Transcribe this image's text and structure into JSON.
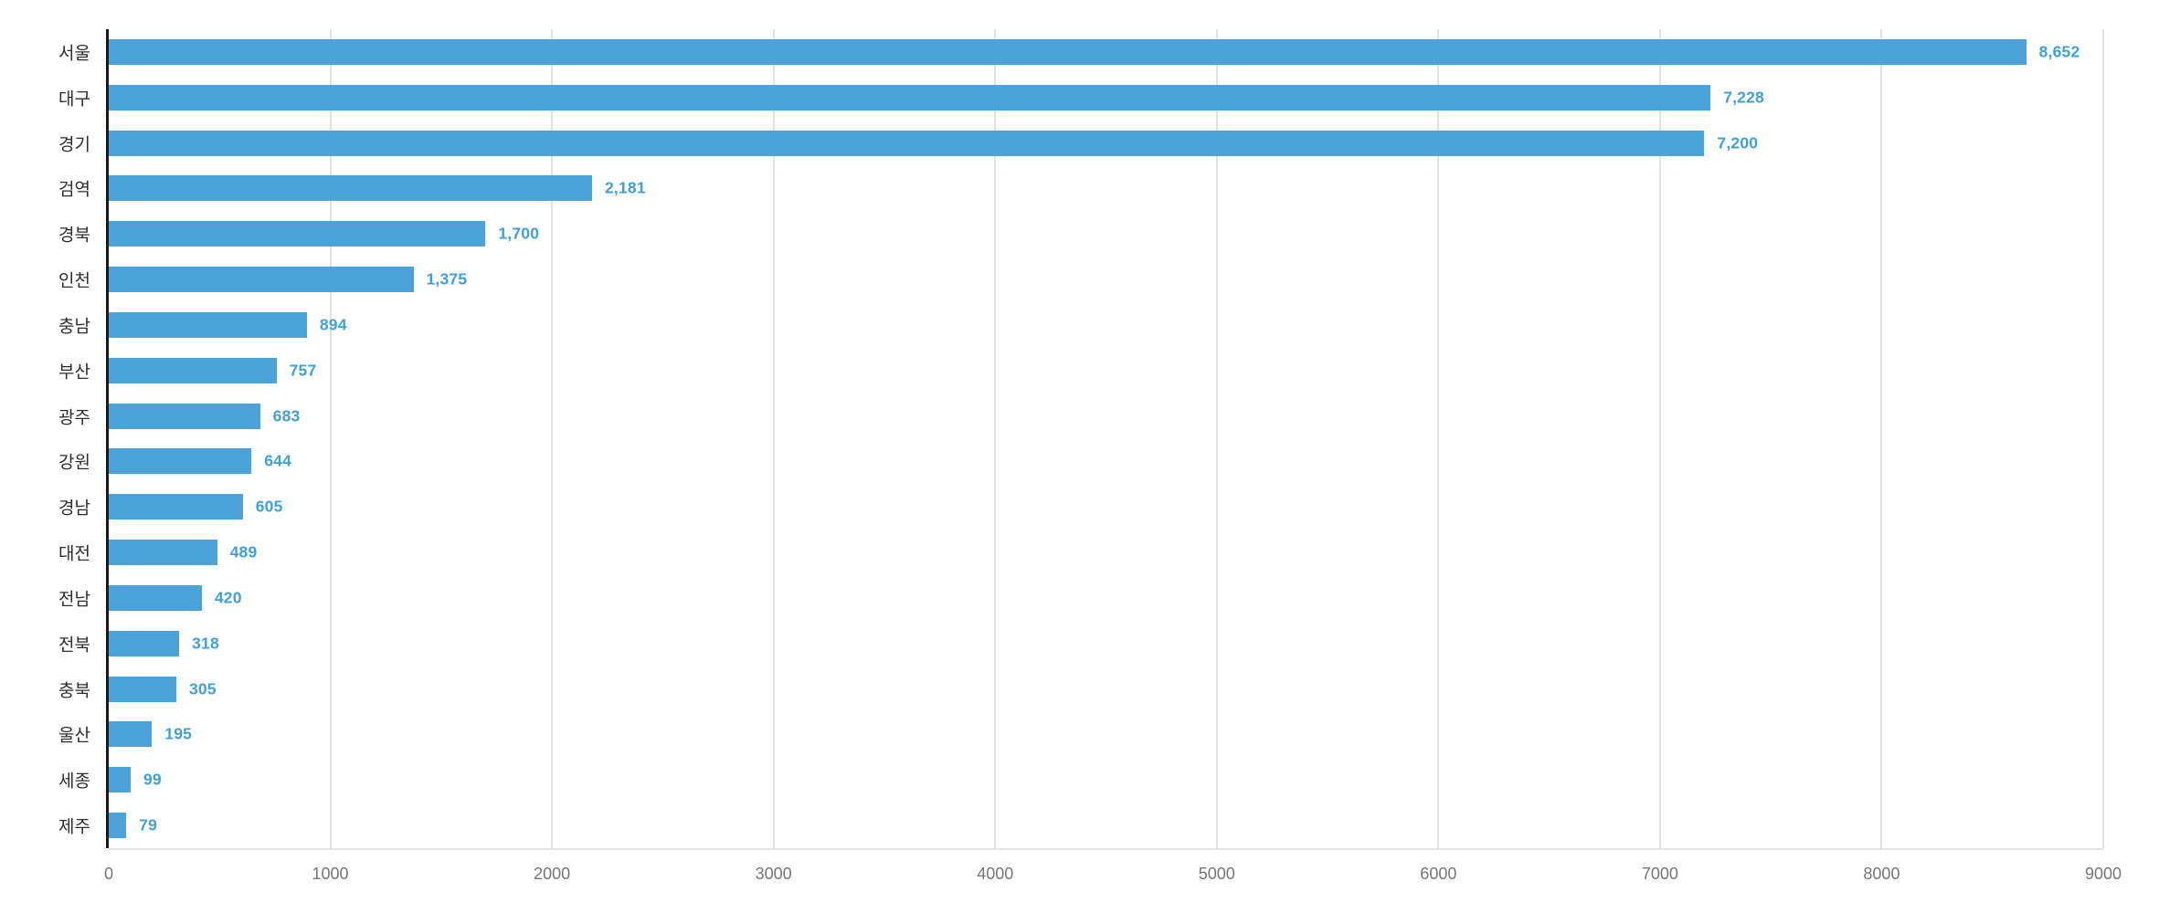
{
  "chart_data": {
    "type": "bar",
    "orientation": "horizontal",
    "title": "",
    "xlabel": "",
    "ylabel": "",
    "categories": [
      "서울",
      "대구",
      "경기",
      "검역",
      "경북",
      "인천",
      "충남",
      "부산",
      "광주",
      "강원",
      "경남",
      "대전",
      "전남",
      "전북",
      "충북",
      "울산",
      "세종",
      "제주"
    ],
    "values": [
      8652,
      7228,
      7200,
      2181,
      1700,
      1375,
      894,
      757,
      683,
      644,
      605,
      489,
      420,
      318,
      305,
      195,
      99,
      79
    ],
    "value_labels": [
      "8,652",
      "7,228",
      "7,200",
      "2,181",
      "1,700",
      "1,375",
      "894",
      "757",
      "683",
      "644",
      "605",
      "489",
      "420",
      "318",
      "305",
      "195",
      "99",
      "79"
    ],
    "xlim": [
      0,
      9000
    ],
    "x_ticks": [
      0,
      1000,
      2000,
      3000,
      4000,
      5000,
      6000,
      7000,
      8000,
      9000
    ],
    "grid": true,
    "legend": false
  },
  "colors": {
    "bar": "#4ba3da",
    "value_label": "#3fa1dc",
    "category_label": "#2e2e2e",
    "tick_label": "#767676",
    "gridline": "#e2e2e2",
    "axis": "#191919",
    "background": "#ffffff"
  }
}
